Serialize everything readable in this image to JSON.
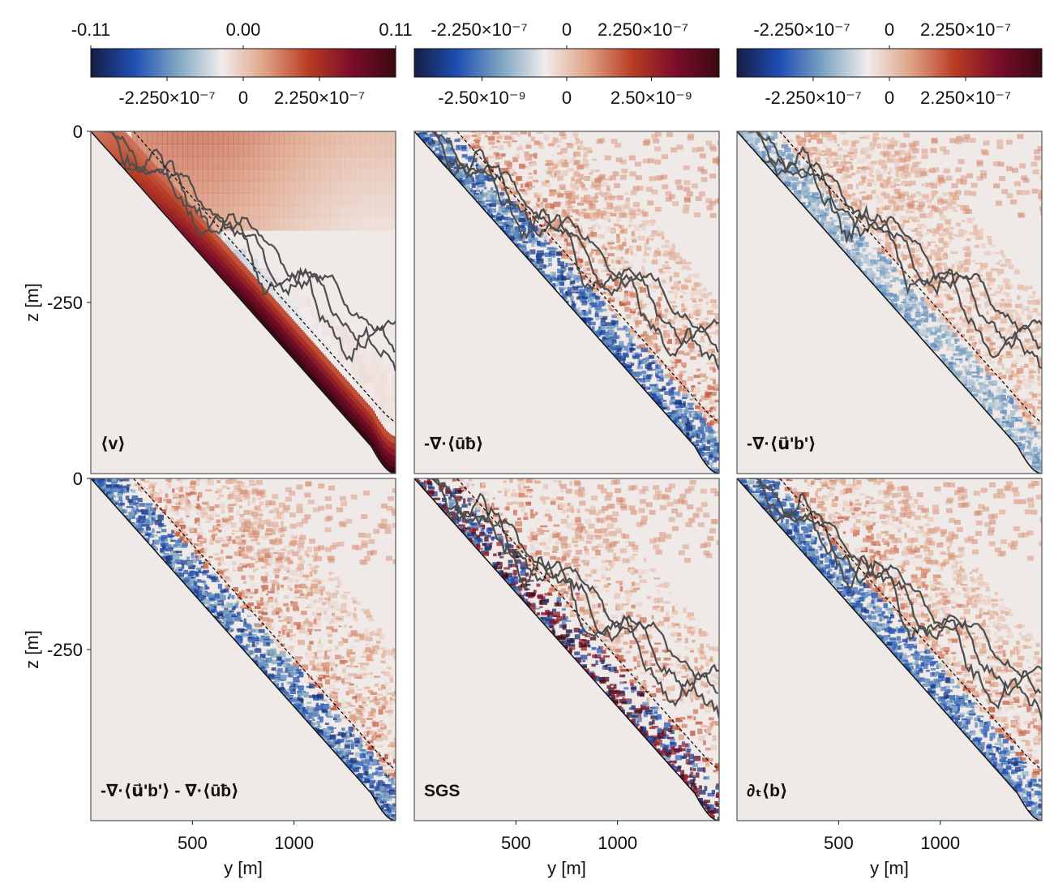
{
  "chart_data": {
    "type": "heatmap",
    "colormap": {
      "name": "balance",
      "stops": [
        "#151d44",
        "#1f4fb5",
        "#7ea6c2",
        "#f1ecec",
        "#dfa285",
        "#b83c24",
        "#7a0d2a",
        "#3c0912"
      ]
    },
    "background_color": "#efe9e8",
    "contour_color": "#4d4d4d",
    "x_axis": {
      "label": "y [m]",
      "ticks": [
        "500",
        "1000"
      ],
      "tick_values": [
        500,
        1000
      ],
      "range": [
        0,
        1500
      ]
    },
    "y_axis": {
      "label": "z [m]",
      "ticks": [
        "0",
        "-250"
      ],
      "tick_values": [
        0,
        -250
      ],
      "range": [
        -500,
        0
      ]
    },
    "colorbars": [
      {
        "top_ticks": [
          "-0.11",
          "0.00",
          "0.11"
        ],
        "top_values": [
          -0.11,
          0.0,
          0.11
        ],
        "bottom_ticks": [
          "-2.250×10⁻⁷",
          "0",
          "2.250×10⁻⁷"
        ],
        "bottom_values": [
          -2.25e-07,
          0,
          2.25e-07
        ],
        "bottom_range": [
          -4.5e-07,
          4.5e-07
        ]
      },
      {
        "top_ticks": [
          "-2.250×10⁻⁷",
          "0",
          "2.250×10⁻⁷"
        ],
        "top_values": [
          -2.25e-07,
          0,
          2.25e-07
        ],
        "bottom_ticks": [
          "-2.50×10⁻⁹",
          "0",
          "2.50×10⁻⁹"
        ],
        "bottom_values": [
          -2.5e-09,
          0,
          2.5e-09
        ],
        "bottom_range": [
          -4.5e-09,
          4.5e-09
        ]
      },
      {
        "top_ticks": [
          "-2.250×10⁻⁷",
          "0",
          "2.250×10⁻⁷"
        ],
        "top_values": [
          -2.25e-07,
          0,
          2.25e-07
        ],
        "bottom_ticks": [
          "-2.250×10⁻⁷",
          "0",
          "2.250×10⁻⁷"
        ],
        "bottom_values": [
          -2.25e-07,
          0,
          2.25e-07
        ],
        "bottom_range": [
          -4.5e-07,
          4.5e-07
        ]
      }
    ],
    "panels": [
      {
        "label": "⟨v⟩",
        "style": "smooth",
        "intensity": 1.0,
        "contours": 3
      },
      {
        "label": "-∇·⟨ūƀ⟩",
        "style": "turbulent",
        "intensity": 0.9,
        "contours": 3
      },
      {
        "label": "-∇·⟨u⃗'b'⟩",
        "style": "turbulent",
        "intensity": 0.55,
        "contours": 3
      },
      {
        "label": "-∇·⟨u⃗'b'⟩ - ∇·⟨ūƀ⟩",
        "style": "turbulent",
        "intensity": 0.9,
        "contours": 0
      },
      {
        "label": "SGS",
        "style": "sgs",
        "intensity": 1.0,
        "contours": 3
      },
      {
        "label": "∂ₜ⟨b⟩",
        "style": "turbulent",
        "intensity": 0.85,
        "contours": 3
      }
    ]
  }
}
